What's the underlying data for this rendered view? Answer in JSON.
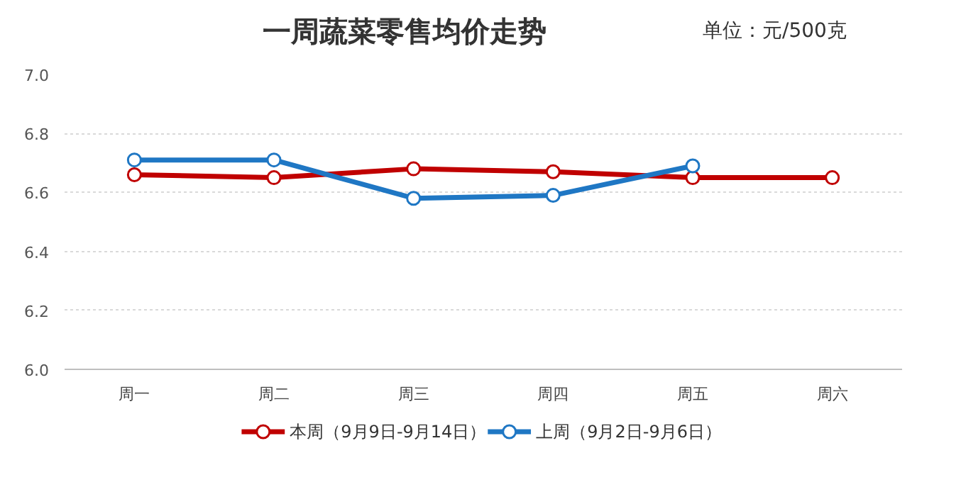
{
  "chart_data": {
    "type": "line",
    "title": "一周蔬菜零售均价走势",
    "subtitle": "单位：元/500克",
    "categories": [
      "周一",
      "周二",
      "周三",
      "周四",
      "周五",
      "周六"
    ],
    "series": [
      {
        "name": "本周（9月9日-9月14日）",
        "color": "#c00000",
        "values": [
          6.66,
          6.65,
          6.68,
          6.67,
          6.65,
          6.65
        ]
      },
      {
        "name": "上周（9月2日-9月6日）",
        "color": "#1f77c4",
        "values": [
          6.71,
          6.71,
          6.58,
          6.59,
          6.69,
          null
        ]
      }
    ],
    "ylim": [
      6.0,
      7.0
    ],
    "yticks": [
      {
        "value": 6.0,
        "label": "6.0"
      },
      6.2,
      6.4,
      6.6,
      6.8,
      {
        "value": 7.0,
        "label": "7.0"
      }
    ],
    "grid": "y",
    "legend": "bottom",
    "marker": "circle",
    "line_style": "solid"
  }
}
